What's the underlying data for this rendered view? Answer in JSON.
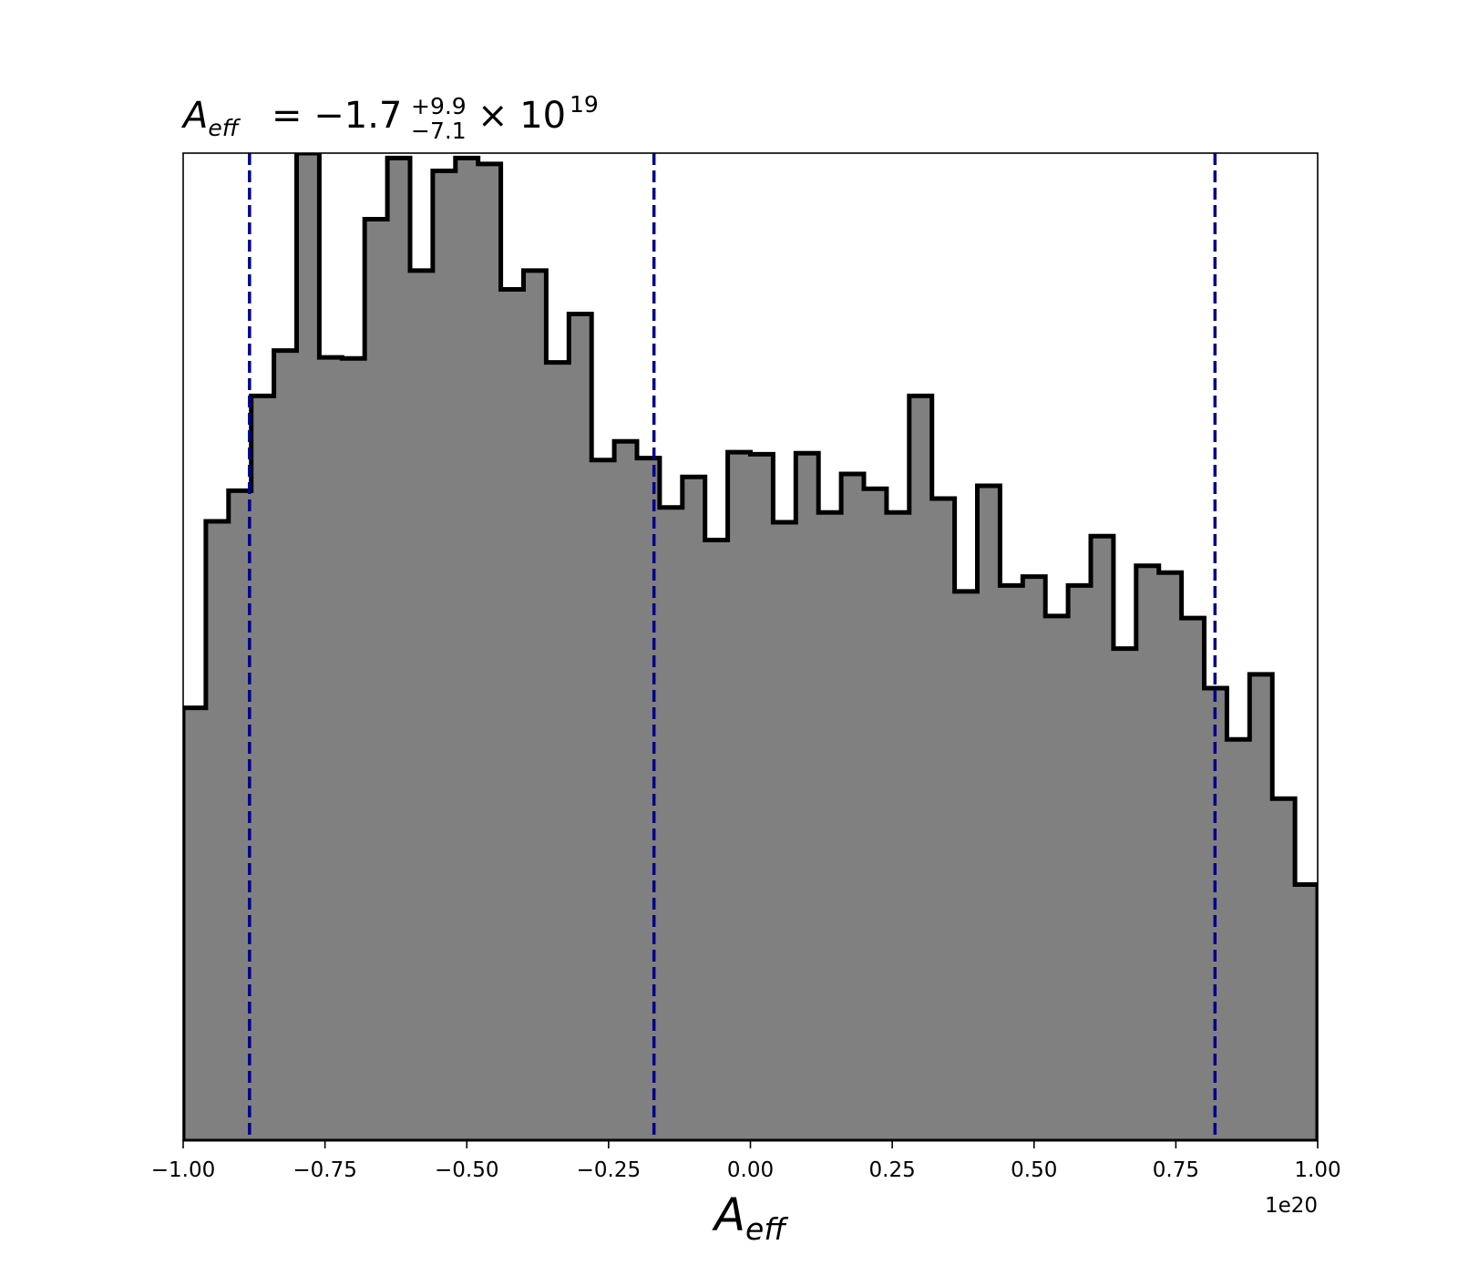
{
  "chart_data": {
    "type": "histogram",
    "title": {
      "symbol": "A",
      "subscript": "eff",
      "equals": "= ",
      "median": "−1.7",
      "upper_error": "+9.9",
      "lower_error": "−7.1",
      "times": "× 10",
      "exponent": "19"
    },
    "xlabel": {
      "symbol": "A",
      "subscript": "eff"
    },
    "x_offset_label": "1e20",
    "xlim": [
      -1.0,
      1.0
    ],
    "ylim": [
      0,
      1.0
    ],
    "y_axis_visible": false,
    "x_ticks": [
      {
        "value": -1.0,
        "label": "−1.00"
      },
      {
        "value": -0.75,
        "label": "−0.75"
      },
      {
        "value": -0.5,
        "label": "−0.50"
      },
      {
        "value": -0.25,
        "label": "−0.25"
      },
      {
        "value": 0.0,
        "label": "0.00"
      },
      {
        "value": 0.25,
        "label": "0.25"
      },
      {
        "value": 0.5,
        "label": "0.50"
      },
      {
        "value": 0.75,
        "label": "0.75"
      },
      {
        "value": 1.0,
        "label": "1.00"
      }
    ],
    "bin_edges_range": [
      -1.0,
      1.0
    ],
    "bin_count": 50,
    "density": [
      0.438,
      0.627,
      0.658,
      0.754,
      0.8,
      1.0,
      0.793,
      0.792,
      0.933,
      0.995,
      0.881,
      0.982,
      0.995,
      0.989,
      0.862,
      0.881,
      0.788,
      0.837,
      0.689,
      0.708,
      0.691,
      0.641,
      0.672,
      0.608,
      0.697,
      0.695,
      0.626,
      0.696,
      0.636,
      0.675,
      0.66,
      0.636,
      0.754,
      0.65,
      0.556,
      0.663,
      0.562,
      0.571,
      0.531,
      0.562,
      0.612,
      0.498,
      0.582,
      0.575,
      0.529,
      0.458,
      0.406,
      0.472,
      0.346,
      0.259
    ],
    "fill_color": "#808080",
    "edge_color": "#000000",
    "quantile_lines": {
      "color": "#00008b",
      "style": "dashed",
      "values": [
        -0.883,
        -0.17,
        0.819
      ]
    }
  }
}
